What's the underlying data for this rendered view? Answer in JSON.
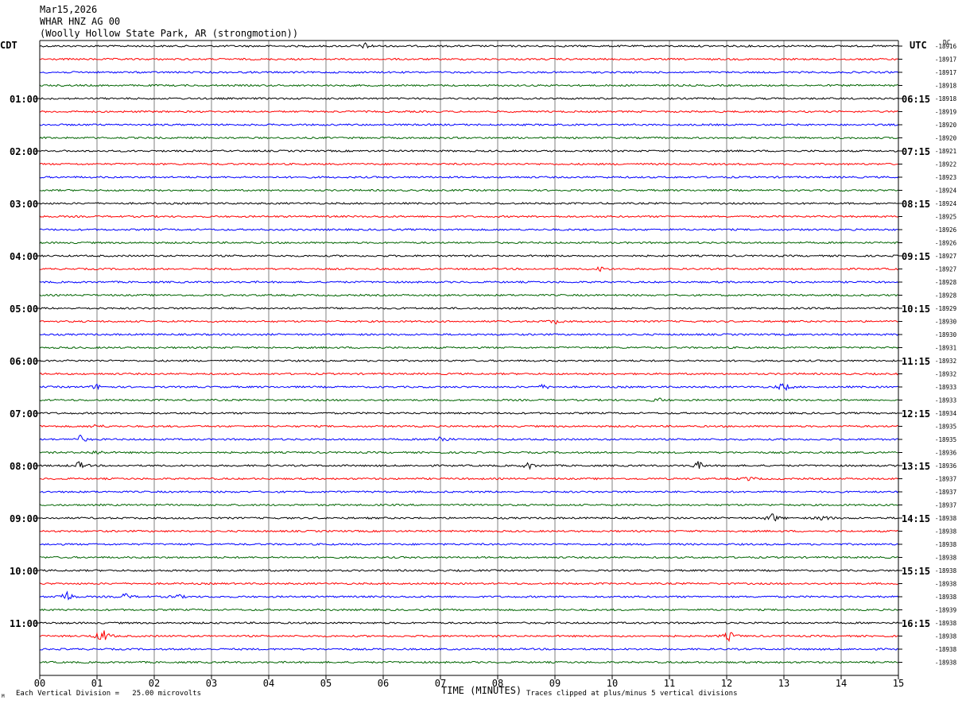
{
  "header": {
    "date": "Mar15,2026",
    "station": "WHAR HNZ AG 00",
    "location": "(Woolly Hollow State Park, AR (strongmotion))"
  },
  "axes": {
    "left_label": "CDT",
    "right_label": "UTC",
    "top_right_label": "DC",
    "x_title": "TIME (MINUTES)"
  },
  "footer": {
    "scale_text": "Each Vertical Division =   25.00 microvolts",
    "clip_text": "Traces clipped at plus/minus 5 vertical divisions",
    "logo_mark": "M"
  },
  "chart_data": {
    "type": "line",
    "title": "",
    "xlabel": "TIME (MINUTES)",
    "xlim": [
      0,
      15
    ],
    "x_ticks": [
      "00",
      "01",
      "02",
      "03",
      "04",
      "05",
      "06",
      "07",
      "08",
      "09",
      "10",
      "11",
      "12",
      "13",
      "14",
      "15"
    ],
    "vertical_grid": true,
    "trace_colors": [
      "#000000",
      "#ff0000",
      "#0000ff",
      "#006400"
    ],
    "rows": 48,
    "left_time_labels": [
      {
        "row": 4,
        "label": "01:00"
      },
      {
        "row": 8,
        "label": "02:00"
      },
      {
        "row": 12,
        "label": "03:00"
      },
      {
        "row": 16,
        "label": "04:00"
      },
      {
        "row": 20,
        "label": "05:00"
      },
      {
        "row": 24,
        "label": "06:00"
      },
      {
        "row": 28,
        "label": "07:00"
      },
      {
        "row": 32,
        "label": "08:00"
      },
      {
        "row": 36,
        "label": "09:00"
      },
      {
        "row": 40,
        "label": "10:00"
      },
      {
        "row": 44,
        "label": "11:00"
      }
    ],
    "right_time_labels": [
      {
        "row": 4,
        "label": "06:15"
      },
      {
        "row": 8,
        "label": "07:15"
      },
      {
        "row": 12,
        "label": "08:15"
      },
      {
        "row": 16,
        "label": "09:15"
      },
      {
        "row": 20,
        "label": "10:15"
      },
      {
        "row": 24,
        "label": "11:15"
      },
      {
        "row": 28,
        "label": "12:15"
      },
      {
        "row": 32,
        "label": "13:15"
      },
      {
        "row": 36,
        "label": "14:15"
      },
      {
        "row": 40,
        "label": "15:15"
      },
      {
        "row": 44,
        "label": "16:15"
      }
    ],
    "dc_offsets": [
      "-18916",
      "-18917",
      "-18917",
      "-18918",
      "-18918",
      "-18919",
      "-18920",
      "-18920",
      "-18921",
      "-18922",
      "-18923",
      "-18924",
      "-18924",
      "-18925",
      "-18926",
      "-18926",
      "-18927",
      "-18927",
      "-18928",
      "-18928",
      "-18929",
      "-18930",
      "-18930",
      "-18931",
      "-18932",
      "-18932",
      "-18933",
      "-18933",
      "-18934",
      "-18935",
      "-18935",
      "-18936",
      "-18936",
      "-18937",
      "-18937",
      "-18937",
      "-18938",
      "-18938",
      "-18938",
      "-18938",
      "-18938",
      "-18938",
      "-18938",
      "-18939",
      "-18938",
      "-18938",
      "-18938",
      "-18938"
    ],
    "events": [
      {
        "row": 0,
        "minute": 5.7,
        "amp": 4
      },
      {
        "row": 17,
        "minute": 9.8,
        "amp": 3
      },
      {
        "row": 21,
        "minute": 9.0,
        "amp": 3
      },
      {
        "row": 26,
        "minute": 1.0,
        "amp": 3
      },
      {
        "row": 26,
        "minute": 8.8,
        "amp": 3
      },
      {
        "row": 26,
        "minute": 13.0,
        "amp": 6
      },
      {
        "row": 27,
        "minute": 10.8,
        "amp": 3
      },
      {
        "row": 29,
        "minute": 1.0,
        "amp": 3
      },
      {
        "row": 30,
        "minute": 0.7,
        "amp": 5
      },
      {
        "row": 30,
        "minute": 7.0,
        "amp": 5
      },
      {
        "row": 31,
        "minute": 1.0,
        "amp": 3
      },
      {
        "row": 32,
        "minute": 0.7,
        "amp": 5
      },
      {
        "row": 32,
        "minute": 8.55,
        "amp": 4
      },
      {
        "row": 32,
        "minute": 11.5,
        "amp": 5
      },
      {
        "row": 33,
        "minute": 12.4,
        "amp": 3
      },
      {
        "row": 36,
        "minute": 12.8,
        "amp": 6
      },
      {
        "row": 36,
        "minute": 13.7,
        "amp": 4
      },
      {
        "row": 42,
        "minute": 0.45,
        "amp": 9
      },
      {
        "row": 42,
        "minute": 1.5,
        "amp": 4
      },
      {
        "row": 42,
        "minute": 2.4,
        "amp": 3
      },
      {
        "row": 45,
        "minute": 1.1,
        "amp": 10
      },
      {
        "row": 45,
        "minute": 12.05,
        "amp": 6
      }
    ]
  }
}
